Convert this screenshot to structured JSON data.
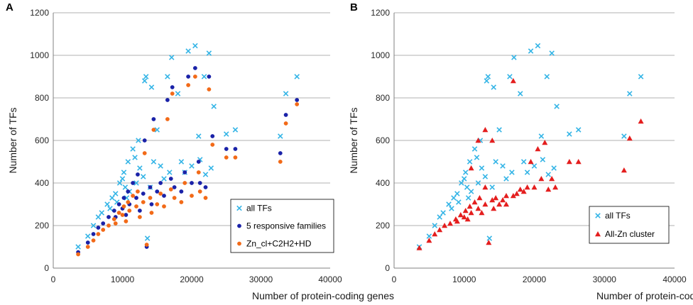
{
  "colors": {
    "all_tfs": "#33b4e6",
    "responsive": "#1a22a8",
    "zn_hd": "#f26a18",
    "allzn": "#e41e1e",
    "grid": "#b0b0b0"
  },
  "chart_data": [
    {
      "type": "scatter",
      "panel": "A",
      "xlabel": "Number of protein-coding genes",
      "ylabel": "Number of TFs",
      "xlim": [
        0,
        40000
      ],
      "ylim": [
        0,
        1200
      ],
      "xticks": [
        "0",
        "10000",
        "20000",
        "30000",
        "40000"
      ],
      "yticks": [
        "0",
        "200",
        "400",
        "600",
        "800",
        "1000",
        "1200"
      ],
      "legend_position": "bottom-right",
      "series": [
        {
          "name": "all TFs",
          "marker": "x",
          "color_key": "all_tfs",
          "points": [
            [
              3600,
              100
            ],
            [
              5000,
              150
            ],
            [
              5800,
              200
            ],
            [
              6500,
              240
            ],
            [
              7000,
              260
            ],
            [
              7800,
              300
            ],
            [
              8500,
              330
            ],
            [
              9000,
              350
            ],
            [
              9600,
              400
            ],
            [
              10200,
              450
            ],
            [
              10800,
              500
            ],
            [
              11500,
              560
            ],
            [
              12300,
              600
            ],
            [
              13200,
              880
            ],
            [
              13400,
              900
            ],
            [
              13600,
              140
            ],
            [
              14200,
              850
            ],
            [
              15000,
              650
            ],
            [
              16500,
              900
            ],
            [
              17100,
              990
            ],
            [
              18000,
              820
            ],
            [
              19500,
              1020
            ],
            [
              20500,
              1045
            ],
            [
              21000,
              620
            ],
            [
              21800,
              900
            ],
            [
              22500,
              1010
            ],
            [
              22800,
              470
            ],
            [
              23200,
              760
            ],
            [
              25000,
              630
            ],
            [
              26300,
              650
            ],
            [
              32800,
              620
            ],
            [
              33600,
              820
            ],
            [
              35200,
              900
            ],
            [
              10000,
              420
            ],
            [
              10400,
              380
            ],
            [
              11000,
              360
            ],
            [
              11800,
              520
            ],
            [
              12500,
              470
            ],
            [
              13000,
              430
            ],
            [
              14500,
              500
            ],
            [
              15500,
              480
            ],
            [
              16000,
              420
            ],
            [
              19000,
              450
            ],
            [
              20000,
              480
            ],
            [
              22000,
              440
            ],
            [
              9200,
              310
            ],
            [
              8200,
              280
            ],
            [
              10600,
              330
            ],
            [
              12000,
              400
            ],
            [
              14000,
              380
            ],
            [
              16800,
              450
            ],
            [
              18500,
              500
            ],
            [
              21200,
              510
            ]
          ]
        },
        {
          "name": "5 responsive families",
          "marker": "circle",
          "color_key": "responsive",
          "points": [
            [
              3600,
              75
            ],
            [
              5000,
              120
            ],
            [
              5800,
              160
            ],
            [
              6500,
              190
            ],
            [
              7200,
              210
            ],
            [
              8000,
              240
            ],
            [
              8800,
              270
            ],
            [
              9500,
              300
            ],
            [
              10200,
              330
            ],
            [
              10800,
              360
            ],
            [
              11500,
              400
            ],
            [
              12200,
              440
            ],
            [
              13200,
              600
            ],
            [
              13500,
              100
            ],
            [
              14500,
              700
            ],
            [
              16500,
              790
            ],
            [
              17200,
              850
            ],
            [
              19500,
              900
            ],
            [
              20500,
              940
            ],
            [
              21200,
              400
            ],
            [
              22500,
              900
            ],
            [
              23000,
              620
            ],
            [
              25000,
              560
            ],
            [
              26300,
              560
            ],
            [
              32800,
              540
            ],
            [
              33600,
              720
            ],
            [
              35200,
              790
            ],
            [
              10000,
              280
            ],
            [
              11000,
              300
            ],
            [
              12000,
              330
            ],
            [
              13000,
              350
            ],
            [
              14000,
              380
            ],
            [
              15000,
              360
            ],
            [
              16000,
              340
            ],
            [
              17500,
              380
            ],
            [
              18500,
              360
            ],
            [
              20000,
              400
            ],
            [
              22000,
              380
            ],
            [
              9000,
              240
            ],
            [
              10500,
              250
            ],
            [
              12500,
              270
            ],
            [
              14200,
              300
            ],
            [
              15500,
              400
            ],
            [
              17000,
              420
            ],
            [
              19000,
              450
            ],
            [
              21000,
              500
            ]
          ]
        },
        {
          "name": "Zn_cl+C2H2+HD",
          "marker": "circle",
          "color_key": "zn_hd",
          "points": [
            [
              3600,
              65
            ],
            [
              5000,
              100
            ],
            [
              5800,
              130
            ],
            [
              6500,
              160
            ],
            [
              7200,
              180
            ],
            [
              8000,
              200
            ],
            [
              8800,
              230
            ],
            [
              9500,
              260
            ],
            [
              10200,
              290
            ],
            [
              10800,
              310
            ],
            [
              11500,
              340
            ],
            [
              12200,
              360
            ],
            [
              13200,
              540
            ],
            [
              13500,
              110
            ],
            [
              14500,
              650
            ],
            [
              16500,
              700
            ],
            [
              17200,
              820
            ],
            [
              19500,
              860
            ],
            [
              20500,
              900
            ],
            [
              21200,
              360
            ],
            [
              22500,
              840
            ],
            [
              23000,
              580
            ],
            [
              25000,
              520
            ],
            [
              26300,
              520
            ],
            [
              32800,
              500
            ],
            [
              33600,
              680
            ],
            [
              35200,
              770
            ],
            [
              10000,
              250
            ],
            [
              11000,
              270
            ],
            [
              12000,
              290
            ],
            [
              13000,
              310
            ],
            [
              14000,
              330
            ],
            [
              15000,
              300
            ],
            [
              16000,
              290
            ],
            [
              17500,
              330
            ],
            [
              18500,
              310
            ],
            [
              20000,
              340
            ],
            [
              22000,
              330
            ],
            [
              9000,
              210
            ],
            [
              10500,
              220
            ],
            [
              12500,
              240
            ],
            [
              14200,
              260
            ],
            [
              15500,
              350
            ],
            [
              17000,
              370
            ],
            [
              19000,
              400
            ],
            [
              21000,
              450
            ]
          ]
        }
      ]
    },
    {
      "type": "scatter",
      "panel": "B",
      "xlabel": "Number of protein-coding genes",
      "ylabel": "Number of TFs",
      "xlim": [
        0,
        40000
      ],
      "ylim": [
        0,
        1200
      ],
      "xticks": [
        "0",
        "10000",
        "20000",
        "30000",
        "40000"
      ],
      "yticks": [
        "0",
        "200",
        "400",
        "600",
        "800",
        "1000",
        "1200"
      ],
      "legend_position": "bottom-right",
      "series": [
        {
          "name": "all TFs",
          "marker": "x",
          "color_key": "all_tfs",
          "points": [
            [
              3600,
              100
            ],
            [
              5000,
              150
            ],
            [
              5800,
              200
            ],
            [
              6500,
              240
            ],
            [
              7000,
              260
            ],
            [
              7800,
              300
            ],
            [
              8500,
              330
            ],
            [
              9000,
              350
            ],
            [
              9600,
              400
            ],
            [
              10200,
              450
            ],
            [
              10800,
              500
            ],
            [
              11500,
              560
            ],
            [
              12300,
              600
            ],
            [
              13200,
              880
            ],
            [
              13400,
              900
            ],
            [
              13600,
              140
            ],
            [
              14200,
              850
            ],
            [
              15000,
              650
            ],
            [
              16500,
              900
            ],
            [
              17100,
              990
            ],
            [
              18000,
              820
            ],
            [
              19500,
              1020
            ],
            [
              20500,
              1045
            ],
            [
              21000,
              620
            ],
            [
              21800,
              900
            ],
            [
              22500,
              1010
            ],
            [
              22800,
              470
            ],
            [
              23200,
              760
            ],
            [
              25000,
              630
            ],
            [
              26300,
              650
            ],
            [
              32800,
              620
            ],
            [
              33600,
              820
            ],
            [
              35200,
              900
            ],
            [
              10000,
              420
            ],
            [
              10400,
              380
            ],
            [
              11000,
              360
            ],
            [
              11800,
              520
            ],
            [
              12500,
              470
            ],
            [
              13000,
              430
            ],
            [
              14500,
              500
            ],
            [
              15500,
              480
            ],
            [
              16000,
              420
            ],
            [
              19000,
              450
            ],
            [
              20000,
              480
            ],
            [
              22000,
              440
            ],
            [
              9200,
              310
            ],
            [
              8200,
              280
            ],
            [
              10600,
              330
            ],
            [
              12000,
              400
            ],
            [
              14000,
              380
            ],
            [
              16800,
              450
            ],
            [
              18500,
              500
            ],
            [
              21200,
              510
            ]
          ]
        },
        {
          "name": "All-Zn cluster",
          "marker": "triangle",
          "color_key": "allzn",
          "points": [
            [
              3600,
              95
            ],
            [
              5000,
              130
            ],
            [
              5800,
              160
            ],
            [
              6500,
              180
            ],
            [
              7200,
              200
            ],
            [
              8000,
              210
            ],
            [
              8800,
              230
            ],
            [
              9500,
              250
            ],
            [
              10200,
              270
            ],
            [
              10800,
              290
            ],
            [
              11500,
              310
            ],
            [
              12200,
              330
            ],
            [
              13000,
              380
            ],
            [
              13500,
              120
            ],
            [
              14500,
              330
            ],
            [
              16000,
              300
            ],
            [
              17000,
              880
            ],
            [
              18000,
              370
            ],
            [
              19500,
              500
            ],
            [
              20500,
              560
            ],
            [
              21500,
              590
            ],
            [
              22500,
              420
            ],
            [
              23000,
              380
            ],
            [
              25000,
              500
            ],
            [
              26300,
              500
            ],
            [
              32800,
              460
            ],
            [
              33600,
              610
            ],
            [
              35200,
              690
            ],
            [
              10000,
              240
            ],
            [
              11000,
              260
            ],
            [
              12000,
              280
            ],
            [
              13000,
              300
            ],
            [
              14000,
              320
            ],
            [
              15000,
              300
            ],
            [
              16000,
              340
            ],
            [
              17500,
              350
            ],
            [
              18500,
              360
            ],
            [
              20000,
              380
            ],
            [
              22000,
              370
            ],
            [
              9000,
              220
            ],
            [
              10500,
              230
            ],
            [
              12500,
              260
            ],
            [
              14200,
              280
            ],
            [
              15500,
              320
            ],
            [
              17000,
              340
            ],
            [
              19000,
              380
            ],
            [
              21000,
              420
            ],
            [
              12000,
              600
            ],
            [
              13000,
              650
            ],
            [
              11000,
              470
            ],
            [
              14000,
              600
            ]
          ]
        }
      ]
    }
  ]
}
